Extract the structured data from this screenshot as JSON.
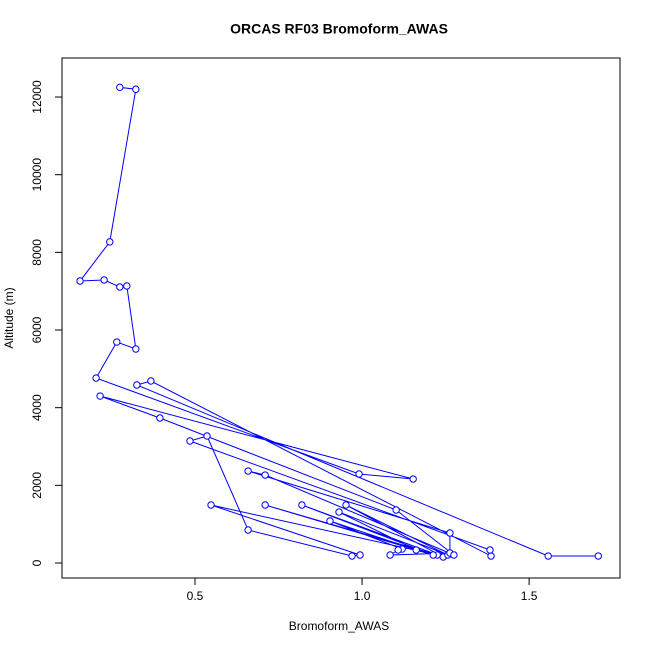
{
  "chart_data": {
    "type": "scatter",
    "title": "ORCAS RF03 Bromoform_AWAS",
    "x_label": "Bromoform_AWAS",
    "y_label": "Altitude (m)",
    "color": "#0000ff",
    "lines": true,
    "x": [
      1.707,
      1.557,
      0.326,
      0.368,
      1.386,
      1.383,
      0.485,
      0.536,
      0.659,
      0.97,
      0.994,
      0.548,
      1.225,
      0.71,
      1.213,
      0.82,
      1.243,
      0.952,
      1.257,
      0.931,
      1.162,
      0.904,
      1.12,
      1.108,
      1.084,
      1.263,
      1.263,
      0.659,
      0.71,
      1.275,
      1.102,
      0.395,
      0.216,
      1.153,
      0.991,
      0.204,
      0.266,
      0.323,
      0.296,
      0.275,
      0.228,
      0.156,
      0.245,
      0.323,
      0.275
    ],
    "y": [
      180,
      180,
      4584,
      4687,
      180,
      335,
      3142,
      3271,
      850,
      180,
      206,
      1494,
      206,
      1494,
      206,
      1494,
      155,
      1494,
      206,
      1313,
      335,
      1082,
      360,
      335,
      206,
      258,
      773,
      2369,
      2266,
      206,
      1365,
      3734,
      4300,
      2163,
      2292,
      4764,
      5691,
      5511,
      7134,
      7108,
      7288,
      7262,
      8270,
      12200,
      12250
    ],
    "xlim": [
      0.102,
      1.772
    ],
    "ylim": [
      -386,
      13005
    ],
    "xticks": [
      0.5,
      {
        "value": 1,
        "label": "1.0"
      },
      1.5
    ],
    "yticks": [
      0,
      2000,
      4000,
      6000,
      8000,
      10000,
      12000
    ]
  }
}
